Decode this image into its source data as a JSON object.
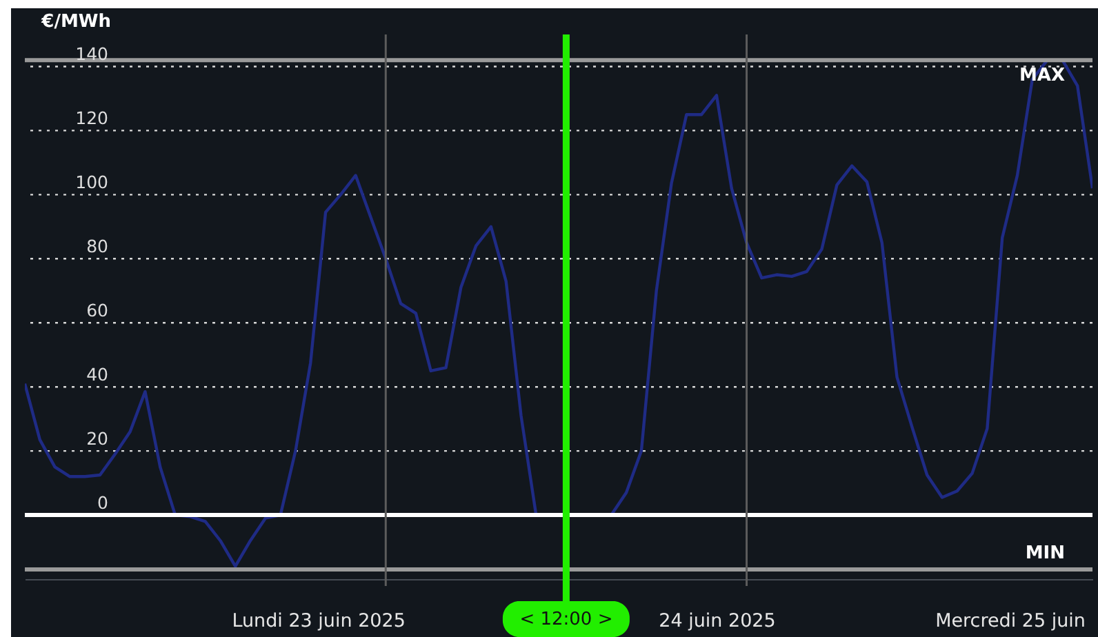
{
  "chart_data": {
    "type": "line",
    "ylabel": "€/MWh",
    "x": [
      "2025-06-23T00:00",
      "2025-06-23T01:00",
      "2025-06-23T02:00",
      "2025-06-23T03:00",
      "2025-06-23T04:00",
      "2025-06-23T05:00",
      "2025-06-23T06:00",
      "2025-06-23T07:00",
      "2025-06-23T08:00",
      "2025-06-23T09:00",
      "2025-06-23T10:00",
      "2025-06-23T11:00",
      "2025-06-23T12:00",
      "2025-06-23T13:00",
      "2025-06-23T14:00",
      "2025-06-23T15:00",
      "2025-06-23T16:00",
      "2025-06-23T17:00",
      "2025-06-23T18:00",
      "2025-06-23T19:00",
      "2025-06-23T20:00",
      "2025-06-23T21:00",
      "2025-06-23T22:00",
      "2025-06-23T23:00",
      "2025-06-24T00:00",
      "2025-06-24T01:00",
      "2025-06-24T02:00",
      "2025-06-24T03:00",
      "2025-06-24T04:00",
      "2025-06-24T05:00",
      "2025-06-24T06:00",
      "2025-06-24T07:00",
      "2025-06-24T08:00",
      "2025-06-24T09:00",
      "2025-06-24T10:00",
      "2025-06-24T11:00",
      "2025-06-24T12:00",
      "2025-06-24T13:00",
      "2025-06-24T14:00",
      "2025-06-24T15:00",
      "2025-06-24T16:00",
      "2025-06-24T17:00",
      "2025-06-24T18:00",
      "2025-06-24T19:00",
      "2025-06-24T20:00",
      "2025-06-24T21:00",
      "2025-06-24T22:00",
      "2025-06-24T23:00",
      "2025-06-25T00:00",
      "2025-06-25T01:00",
      "2025-06-25T02:00",
      "2025-06-25T03:00",
      "2025-06-25T04:00",
      "2025-06-25T05:00",
      "2025-06-25T06:00",
      "2025-06-25T07:00",
      "2025-06-25T08:00",
      "2025-06-25T09:00",
      "2025-06-25T10:00",
      "2025-06-25T11:00",
      "2025-06-25T12:00",
      "2025-06-25T13:00",
      "2025-06-25T14:00",
      "2025-06-25T15:00",
      "2025-06-25T16:00",
      "2025-06-25T17:00",
      "2025-06-25T18:00",
      "2025-06-25T19:00",
      "2025-06-25T20:00",
      "2025-06-25T21:00",
      "2025-06-25T22:00",
      "2025-06-25T23:00"
    ],
    "series": [
      {
        "color": "#1f2b85",
        "values": [
          41,
          23.5,
          15,
          12,
          12,
          12.5,
          19,
          26,
          38.5,
          15,
          0,
          -0.5,
          -2,
          -8,
          -16,
          -8,
          -1,
          0,
          20,
          47.5,
          94.5,
          100,
          106,
          93,
          80,
          66,
          63,
          45,
          46,
          71,
          84,
          90,
          73,
          31,
          0,
          0,
          0,
          0,
          0,
          0,
          7,
          20,
          70,
          103.5,
          125,
          125,
          131,
          102,
          85,
          74,
          75,
          74.5,
          76,
          83,
          103,
          109,
          104,
          85,
          43,
          27.5,
          12.5,
          5.5,
          7.5,
          13,
          27,
          86.5,
          106,
          136,
          142,
          142,
          134,
          102
        ]
      }
    ],
    "xlim": [
      "2025-06-23T00:00",
      "2025-06-25T23:00"
    ],
    "xticks": [
      {
        "value": "2025-06-23T19:30",
        "label": "Lundi 23 juin 2025"
      },
      {
        "value": "2025-06-24T22:00",
        "label": "24 juin 2025"
      },
      {
        "value": "2025-06-25T17:30",
        "label": "Mercredi 25 juin"
      }
    ],
    "ylim": [
      -20,
      150
    ],
    "yticks": [
      0,
      20,
      40,
      60,
      80,
      100,
      120,
      140
    ],
    "grid": "y",
    "ref_lines": [
      {
        "axis": "y",
        "value": 142,
        "label": "MAX",
        "color": "#9a9a9a"
      },
      {
        "axis": "y",
        "value": -17,
        "label": "MIN",
        "color": "#9a9a9a"
      },
      {
        "axis": "y",
        "value": 0,
        "color": "#ffffff"
      },
      {
        "axis": "x",
        "value": "2025-06-24T00:00",
        "color": "#5c5c5c"
      },
      {
        "axis": "x",
        "value": "2025-06-25T00:00",
        "color": "#5c5c5c"
      },
      {
        "axis": "x",
        "value": "2025-06-24T12:00",
        "label": "< 12:00 >",
        "color": "#22ee00"
      }
    ]
  }
}
